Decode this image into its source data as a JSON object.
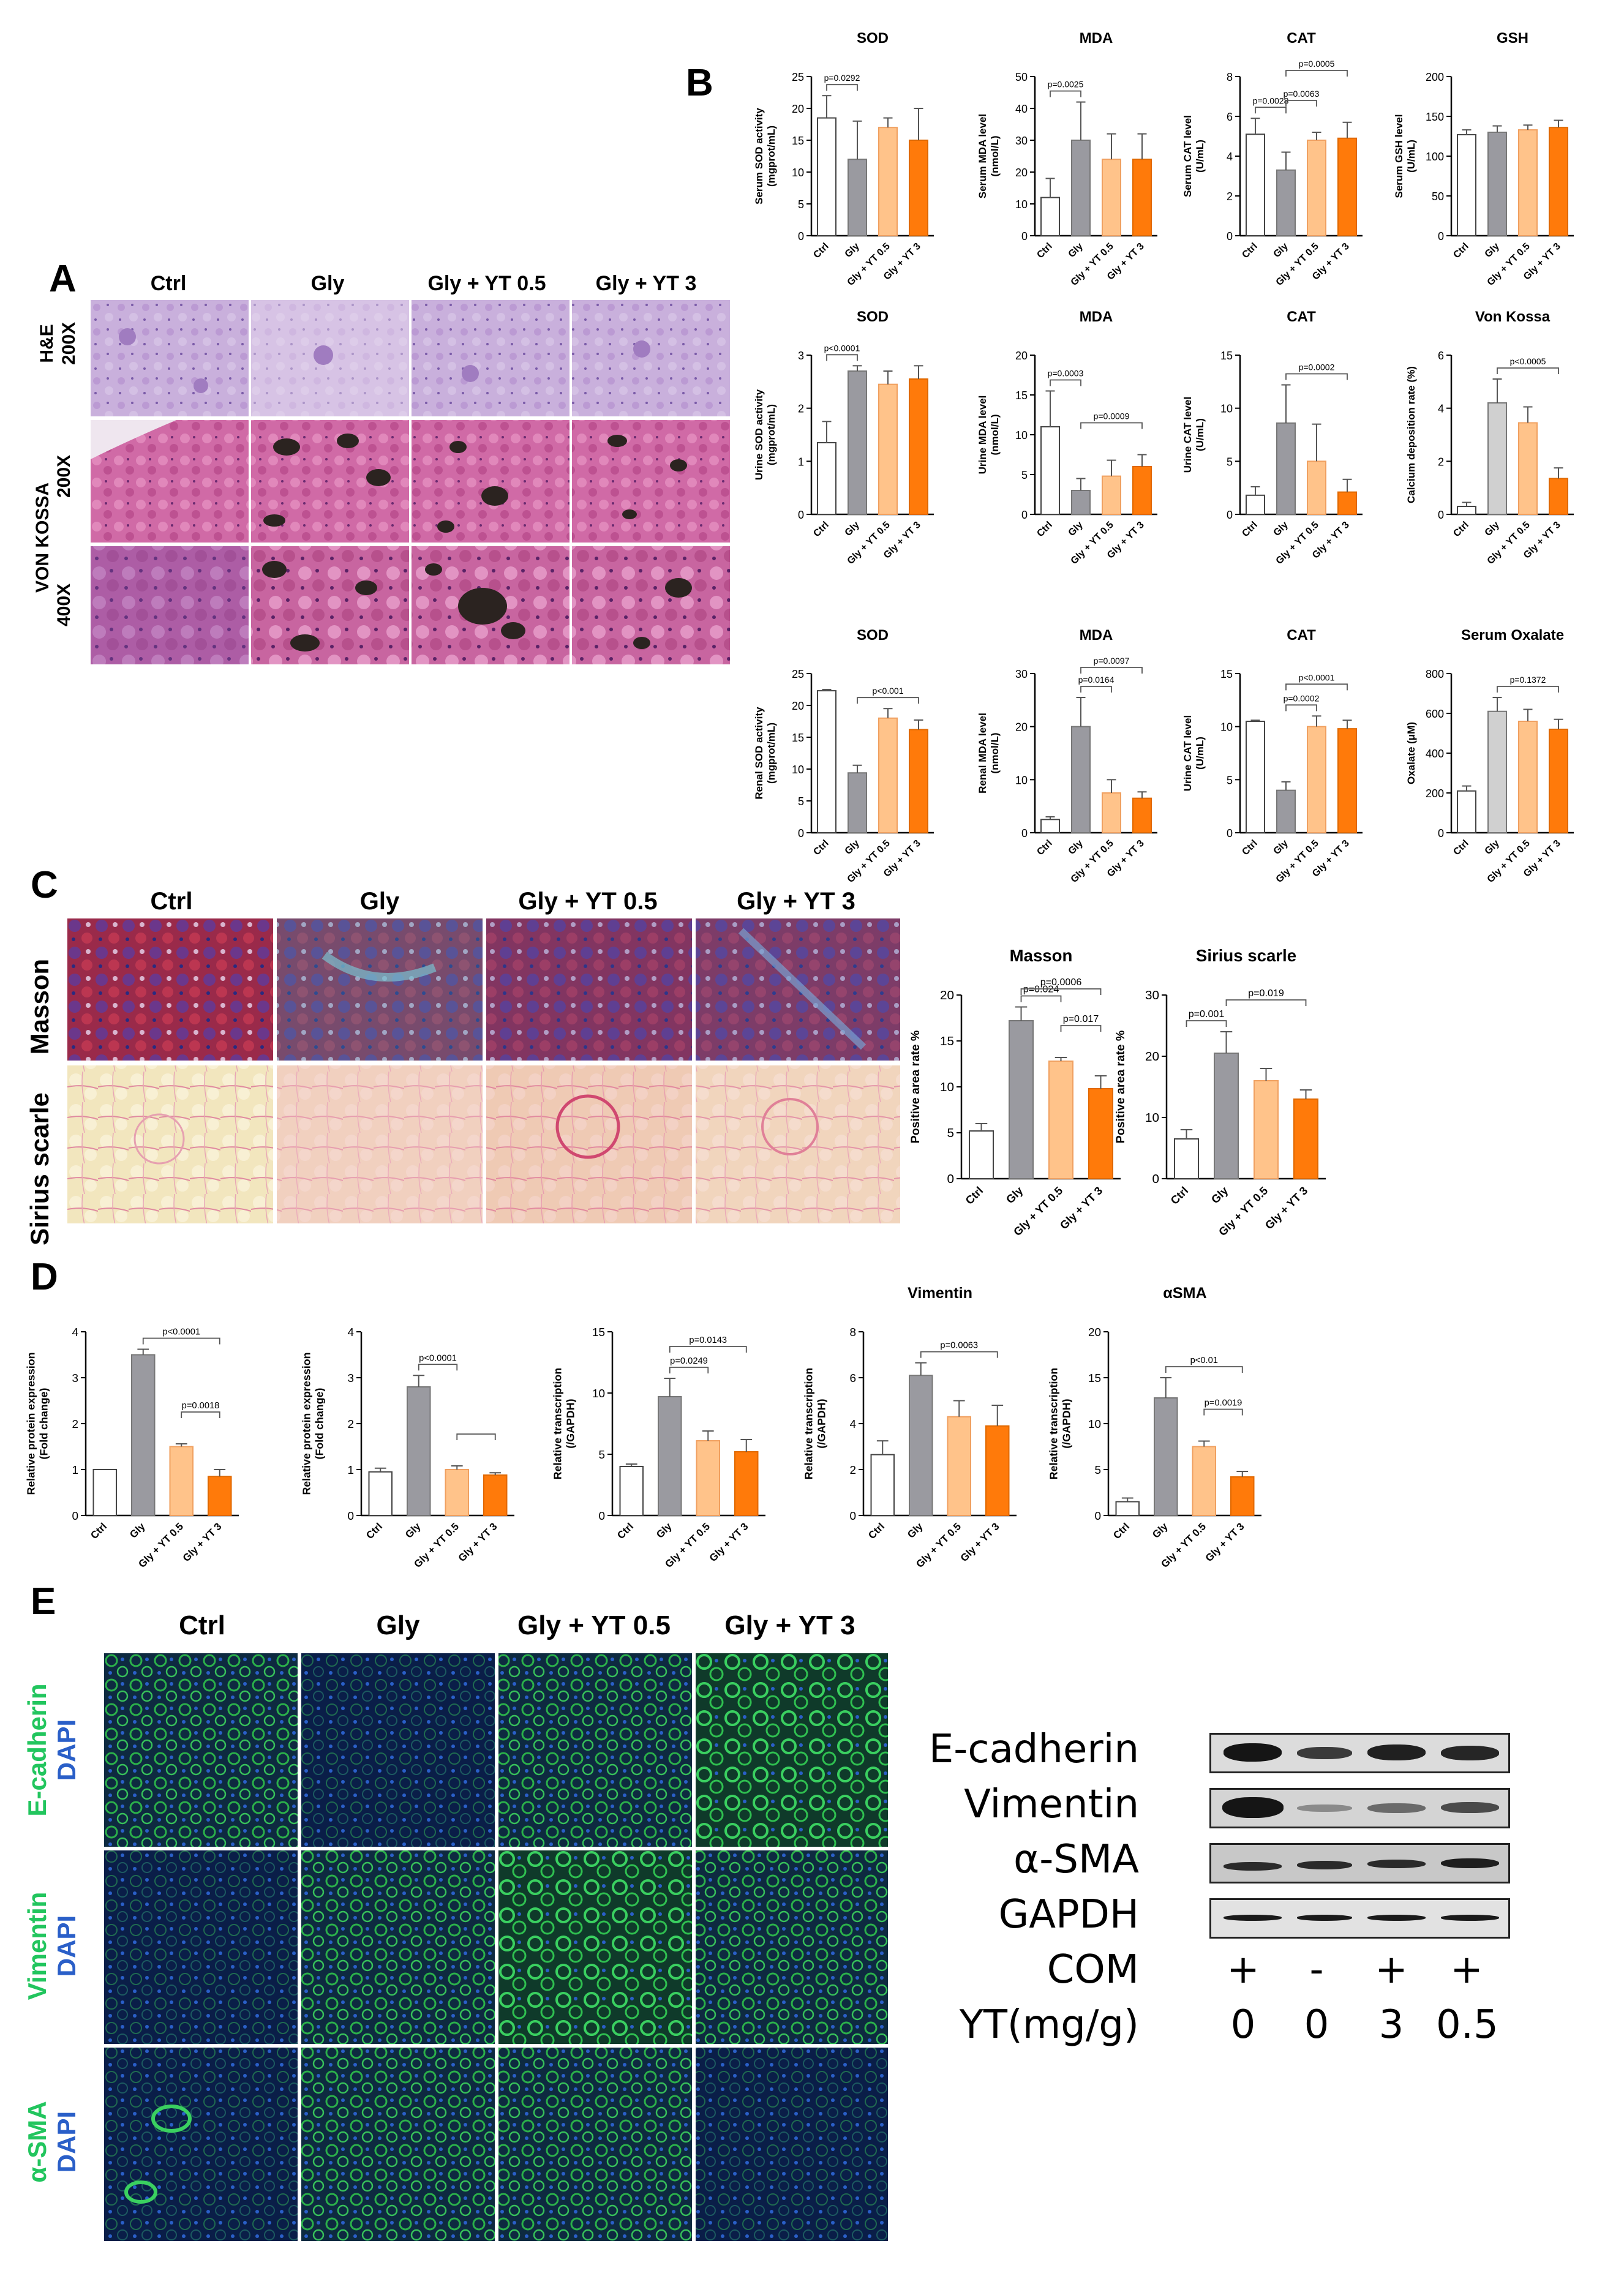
{
  "panels": {
    "A": "A",
    "B": "B",
    "C": "C",
    "D": "D",
    "E": "E"
  },
  "panelA": {
    "cols": [
      "Ctrl",
      "Gly",
      "Gly + YT 0.5",
      "Gly + YT 3"
    ],
    "rows": [
      {
        "stain": "H&E",
        "mag": "200X"
      },
      {
        "stain": "VON KOSSA",
        "mag": "200X"
      },
      {
        "stain": "",
        "mag": "400X"
      }
    ],
    "colors": {
      "he": "#c7a8d8",
      "vk": "#c85a9c",
      "vk_deposit": "#2b2320"
    }
  },
  "panelC": {
    "cols": [
      "Ctrl",
      "Gly",
      "Gly + YT 0.5",
      "Gly + YT 3"
    ],
    "rows": [
      "Masson",
      "Sirius scarle"
    ],
    "colors": {
      "masson": "#8a2a55",
      "masson_blue": "#3a58a8",
      "sirius": "#f3e8c2",
      "sirius_red": "#d85a7a"
    }
  },
  "panelE": {
    "cols": [
      "Ctrl",
      "Gly",
      "Gly  + YT 0.5",
      "Gly + YT 3"
    ],
    "rows": [
      {
        "marker": "E-cadherin",
        "dapi": "DAPI"
      },
      {
        "marker": "Vimentin",
        "dapi": "DAPI"
      },
      {
        "marker": "α-SMA",
        "dapi": "DAPI"
      }
    ],
    "colors": {
      "green": "#22c55e",
      "blue": "#2a5fc8",
      "bg": "#0a1a2a"
    }
  },
  "western": {
    "labels": [
      "E-cadherin",
      "Vimentin",
      "α-SMA",
      "GAPDH"
    ],
    "com_label": "COM",
    "com": [
      "+",
      "-",
      "+",
      "+"
    ],
    "yt_label": "YT(mg/g)",
    "yt": [
      "0",
      "0",
      "3",
      "0.5"
    ]
  },
  "chart_data": [
    {
      "type": "bar",
      "title": "SOD",
      "ylabel": "Serum SOD activity\n(mgprot/mL)",
      "categories": [
        "Ctrl",
        "Gly",
        "Gly + YT 0.5",
        "Gly + YT 3"
      ],
      "values": [
        18.5,
        12,
        17,
        15
      ],
      "errors": [
        3.5,
        6,
        1.5,
        5
      ],
      "ylim": [
        0,
        25
      ],
      "yticks": [
        0,
        5,
        10,
        15,
        20,
        25
      ],
      "annotations": [
        {
          "text": "p=0.0292",
          "from": 0,
          "to": 1
        }
      ]
    },
    {
      "type": "bar",
      "title": "MDA",
      "ylabel": "Serum MDA level\n(nmol/L)",
      "categories": [
        "Ctrl",
        "Gly",
        "Gly + YT 0.5",
        "Gly + YT 3"
      ],
      "values": [
        12,
        30,
        24,
        24
      ],
      "errors": [
        6,
        12,
        8,
        8
      ],
      "ylim": [
        0,
        50
      ],
      "yticks": [
        0,
        10,
        20,
        30,
        40,
        50
      ],
      "annotations": [
        {
          "text": "p=0.0025",
          "from": 0,
          "to": 1
        }
      ]
    },
    {
      "type": "bar",
      "title": "CAT",
      "ylabel": "Serum CAT level\n(U/mL)",
      "categories": [
        "Ctrl",
        "Gly",
        "Gly + YT 0.5",
        "Gly + YT 3"
      ],
      "values": [
        5.1,
        3.3,
        4.8,
        4.9
      ],
      "errors": [
        0.8,
        0.9,
        0.4,
        0.8
      ],
      "ylim": [
        0,
        8
      ],
      "yticks": [
        0,
        2,
        4,
        6,
        8
      ],
      "annotations": [
        {
          "text": "p=0.0028",
          "from": 0,
          "to": 1
        },
        {
          "text": "p=0.0063",
          "from": 1,
          "to": 2
        },
        {
          "text": "p=0.0005",
          "from": 1,
          "to": 3
        }
      ]
    },
    {
      "type": "bar",
      "title": "GSH",
      "ylabel": "Serum GSH level\n(U/mL)",
      "categories": [
        "Ctrl",
        "Gly",
        "Gly + YT 0.5",
        "Gly + YT 3"
      ],
      "values": [
        127,
        130,
        133,
        136
      ],
      "errors": [
        6,
        8,
        6,
        9
      ],
      "ylim": [
        0,
        200
      ],
      "yticks": [
        0,
        50,
        100,
        150,
        200
      ],
      "annotations": []
    },
    {
      "type": "bar",
      "title": "SOD",
      "ylabel": "Urine SOD activity\n(mgprot/mL)",
      "categories": [
        "Ctrl",
        "Gly",
        "Gly + YT 0.5",
        "Gly + YT 3"
      ],
      "values": [
        1.35,
        2.7,
        2.45,
        2.55
      ],
      "errors": [
        0.4,
        0.1,
        0.25,
        0.25
      ],
      "ylim": [
        0,
        3
      ],
      "yticks": [
        0,
        1,
        2,
        3
      ],
      "annotations": [
        {
          "text": "p<0.0001",
          "from": 0,
          "to": 1
        }
      ]
    },
    {
      "type": "bar",
      "title": "MDA",
      "ylabel": "Urine MDA level\n(nmol/L)",
      "categories": [
        "Ctrl",
        "Gly",
        "Gly + YT 0.5",
        "Gly + YT 3"
      ],
      "values": [
        11,
        3,
        4.8,
        6
      ],
      "errors": [
        4.5,
        1.5,
        2,
        1.5
      ],
      "ylim": [
        0,
        20
      ],
      "yticks": [
        0,
        5,
        10,
        15,
        20
      ],
      "annotations": [
        {
          "text": "p=0.0003",
          "from": 0,
          "to": 1
        },
        {
          "text": "p=0.0009",
          "from": 1,
          "to": 3
        }
      ]
    },
    {
      "type": "bar",
      "title": "CAT",
      "ylabel": "Urine CAT level\n(U/mL)",
      "categories": [
        "Ctrl",
        "Gly",
        "Gly + YT 0.5",
        "Gly + YT 3"
      ],
      "values": [
        1.8,
        8.6,
        5,
        2.1
      ],
      "errors": [
        0.8,
        3.6,
        3.5,
        1.2
      ],
      "ylim": [
        0,
        15
      ],
      "yticks": [
        0,
        5,
        10,
        15
      ],
      "annotations": [
        {
          "text": "p=0.0002",
          "from": 1,
          "to": 3
        }
      ]
    },
    {
      "type": "bar",
      "title": "Von Kossa",
      "ylabel": "Calcium deposition rate (%)",
      "categories": [
        "Ctrl",
        "Gly",
        "Gly + YT 0.5",
        "Gly + YT 3"
      ],
      "values": [
        0.3,
        4.2,
        3.45,
        1.35
      ],
      "errors": [
        0.15,
        0.9,
        0.6,
        0.4
      ],
      "ylim": [
        0,
        6
      ],
      "yticks": [
        0,
        2,
        4,
        6
      ],
      "annotations": [
        {
          "text": "p<0.0005",
          "from": 1,
          "to": 3
        }
      ],
      "ctrl_fill": "#ffffff",
      "gly_fill": "#d0d0d0"
    },
    {
      "type": "bar",
      "title": "SOD",
      "ylabel": "Renal SOD activity\n(mgprot/mL)",
      "categories": [
        "Ctrl",
        "Gly",
        "Gly + YT 0.5",
        "Gly + YT 3"
      ],
      "values": [
        22.3,
        9.4,
        18,
        16.2
      ],
      "errors": [
        0.2,
        1.2,
        1.5,
        1.5
      ],
      "ylim": [
        0,
        25
      ],
      "yticks": [
        0,
        5,
        10,
        15,
        20,
        25
      ],
      "annotations": [
        {
          "text": "p<0.001",
          "from": 1,
          "to": 3
        }
      ]
    },
    {
      "type": "bar",
      "title": "MDA",
      "ylabel": "Renal MDA level\n(nmol/L)",
      "categories": [
        "Ctrl",
        "Gly",
        "Gly + YT 0.5",
        "Gly + YT 3"
      ],
      "values": [
        2.5,
        20,
        7.5,
        6.5
      ],
      "errors": [
        0.5,
        5.5,
        2.5,
        1.2
      ],
      "ylim": [
        0,
        30
      ],
      "yticks": [
        0,
        10,
        20,
        30
      ],
      "annotations": [
        {
          "text": "p=0.0164",
          "from": 1,
          "to": 2
        },
        {
          "text": "p=0.0097",
          "from": 1,
          "to": 3
        }
      ]
    },
    {
      "type": "bar",
      "title": "CAT",
      "ylabel": "Urine CAT level\n(U/mL)",
      "categories": [
        "Ctrl",
        "Gly",
        "Gly + YT 0.5",
        "Gly + YT 3"
      ],
      "values": [
        10.5,
        4,
        10,
        9.8
      ],
      "errors": [
        0.1,
        0.8,
        1,
        0.8
      ],
      "ylim": [
        0,
        15
      ],
      "yticks": [
        0,
        5,
        10,
        15
      ],
      "annotations": [
        {
          "text": "p=0.0002",
          "from": 1,
          "to": 2
        },
        {
          "text": "p<0.0001",
          "from": 1,
          "to": 3
        }
      ]
    },
    {
      "type": "bar",
      "title": "Serum Oxalate",
      "ylabel": "Oxalate (μM)",
      "categories": [
        "Ctrl",
        "Gly",
        "Gly + YT 0.5",
        "Gly + YT 3"
      ],
      "values": [
        210,
        610,
        560,
        520
      ],
      "errors": [
        25,
        70,
        60,
        50
      ],
      "ylim": [
        0,
        800
      ],
      "yticks": [
        0,
        200,
        400,
        600,
        800
      ],
      "annotations": [
        {
          "text": "p=0.1372",
          "from": 1,
          "to": 3
        }
      ],
      "ctrl_fill": "#ffffff",
      "gly_fill": "#d0d0d0"
    },
    {
      "type": "bar",
      "title": "Masson",
      "ylabel": "Positive area rate %",
      "categories": [
        "Ctrl",
        "Gly",
        "Gly + YT 0.5",
        "Gly + YT 3"
      ],
      "values": [
        5.2,
        17.2,
        12.8,
        9.8
      ],
      "errors": [
        0.8,
        1.5,
        0.4,
        1.4
      ],
      "ylim": [
        0,
        20
      ],
      "yticks": [
        0,
        5,
        10,
        15,
        20
      ],
      "annotations": [
        {
          "text": "p=0.024",
          "from": 1,
          "to": 2
        },
        {
          "text": "p=0.017",
          "from": 2,
          "to": 3
        },
        {
          "text": "p=0.0006",
          "from": 1,
          "to": 3
        }
      ]
    },
    {
      "type": "bar",
      "title": "Sirius scarle",
      "ylabel": "Positive area rate %",
      "categories": [
        "Ctrl",
        "Gly",
        "Gly + YT 0.5",
        "Gly + YT 3"
      ],
      "values": [
        6.5,
        20.5,
        16,
        13
      ],
      "errors": [
        1.5,
        3.5,
        2,
        1.5
      ],
      "ylim": [
        0,
        30
      ],
      "yticks": [
        0,
        10,
        20,
        30
      ],
      "annotations": [
        {
          "text": "p=0.001",
          "from": 0,
          "to": 1
        },
        {
          "text": "p=0.019",
          "from": 1,
          "to": 3
        }
      ]
    },
    {
      "type": "bar",
      "title": "",
      "ylabel": "Relative protein expression\n(Fold change)",
      "categories": [
        "Ctrl",
        "Gly",
        "Gly + YT 0.5",
        "Gly + YT 3"
      ],
      "values": [
        1,
        3.5,
        1.5,
        0.85
      ],
      "errors": [
        0,
        0.12,
        0.06,
        0.15
      ],
      "ylim": [
        0,
        4
      ],
      "yticks": [
        0,
        1,
        2,
        3,
        4
      ],
      "annotations": [
        {
          "text": "p<0.0001",
          "from": 1,
          "to": 3
        },
        {
          "text": "p=0.0018",
          "from": 2,
          "to": 3
        }
      ]
    },
    {
      "type": "bar",
      "title": "",
      "ylabel": "Relative protein expression\n(Fold change)",
      "categories": [
        "Ctrl",
        "Gly",
        "Gly + YT 0.5",
        "Gly + YT 3"
      ],
      "values": [
        0.95,
        2.8,
        1,
        0.88
      ],
      "errors": [
        0.08,
        0.25,
        0.08,
        0.05
      ],
      "ylim": [
        0,
        4
      ],
      "yticks": [
        0,
        1,
        2,
        3,
        4
      ],
      "annotations": [
        {
          "text": "p<0.0001",
          "from": 1,
          "to": 2
        },
        {
          "text": "",
          "from": 2,
          "to": 3
        }
      ]
    },
    {
      "type": "bar",
      "title": "",
      "ylabel": "Relative transcription\n(/GAPDH)",
      "categories": [
        "Ctrl",
        "Gly",
        "Gly + YT 0.5",
        "Gly + YT 3"
      ],
      "values": [
        4,
        9.7,
        6.1,
        5.2
      ],
      "errors": [
        0.2,
        1.5,
        0.8,
        1
      ],
      "ylim": [
        0,
        15
      ],
      "yticks": [
        0,
        5,
        10,
        15
      ],
      "annotations": [
        {
          "text": "p=0.0249",
          "from": 1,
          "to": 2
        },
        {
          "text": "p=0.0143",
          "from": 1,
          "to": 3
        }
      ]
    },
    {
      "type": "bar",
      "title": "Vimentin",
      "ylabel": "Relative transcription\n(/GAPDH)",
      "categories": [
        "Ctrl",
        "Gly",
        "Gly + YT 0.5",
        "Gly + YT 3"
      ],
      "values": [
        2.65,
        6.1,
        4.3,
        3.9
      ],
      "errors": [
        0.6,
        0.55,
        0.7,
        0.9
      ],
      "ylim": [
        0,
        8
      ],
      "yticks": [
        0,
        2,
        4,
        6,
        8
      ],
      "annotations": [
        {
          "text": "p=0.0063",
          "from": 1,
          "to": 3
        }
      ]
    },
    {
      "type": "bar",
      "title": "αSMA",
      "ylabel": "Relative transcription\n(/GAPDH)",
      "categories": [
        "Ctrl",
        "Gly",
        "Gly + YT 0.5",
        "Gly + YT 3"
      ],
      "values": [
        1.5,
        12.8,
        7.5,
        4.2
      ],
      "errors": [
        0.4,
        2.2,
        0.6,
        0.6
      ],
      "ylim": [
        0,
        20
      ],
      "yticks": [
        0,
        5,
        10,
        15,
        20
      ],
      "annotations": [
        {
          "text": "p<0.01",
          "from": 1,
          "to": 3
        },
        {
          "text": "p=0.0019",
          "from": 2,
          "to": 3
        }
      ]
    }
  ]
}
